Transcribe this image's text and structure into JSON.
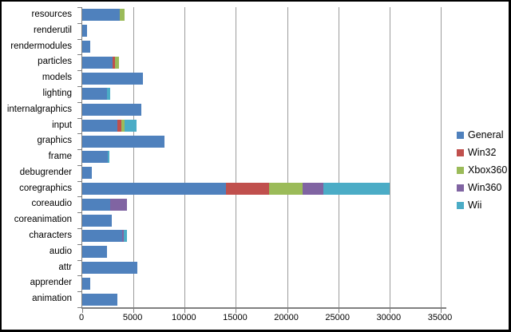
{
  "chart_data": {
    "type": "bar",
    "orientation": "horizontal",
    "stacked": true,
    "title": "",
    "categories": [
      "resources",
      "renderutil",
      "rendermodules",
      "particles",
      "models",
      "lighting",
      "internalgraphics",
      "input",
      "graphics",
      "frame",
      "debugrender",
      "coregraphics",
      "coreaudio",
      "coreanimation",
      "characters",
      "audio",
      "attr",
      "apprender",
      "animation"
    ],
    "series": [
      {
        "name": "General",
        "color": "#4F81BD",
        "values": [
          3700,
          450,
          750,
          2950,
          5900,
          2400,
          5750,
          3400,
          8000,
          2500,
          900,
          14000,
          2750,
          2900,
          3900,
          2450,
          5400,
          750,
          3450
        ]
      },
      {
        "name": "Win32",
        "color": "#C0504D",
        "values": [
          0,
          0,
          0,
          250,
          0,
          0,
          0,
          450,
          0,
          0,
          0,
          4250,
          0,
          0,
          0,
          0,
          0,
          0,
          0
        ]
      },
      {
        "name": "Xbox360",
        "color": "#9BBB59",
        "values": [
          420,
          0,
          0,
          400,
          0,
          0,
          0,
          320,
          0,
          0,
          0,
          3300,
          0,
          0,
          0,
          0,
          0,
          0,
          0
        ]
      },
      {
        "name": "Win360",
        "color": "#8064A2",
        "values": [
          0,
          0,
          0,
          0,
          0,
          0,
          0,
          0,
          0,
          0,
          0,
          2000,
          1600,
          0,
          130,
          0,
          0,
          0,
          0
        ]
      },
      {
        "name": "Wii",
        "color": "#4BACC6",
        "values": [
          0,
          0,
          0,
          0,
          0,
          320,
          0,
          1150,
          0,
          150,
          0,
          6450,
          0,
          0,
          320,
          0,
          0,
          0,
          0
        ]
      }
    ],
    "x_axis": {
      "min": 0,
      "max": 35000,
      "tick_interval": 5000,
      "tick_labels": [
        "0",
        "5000",
        "10000",
        "15000",
        "20000",
        "25000",
        "30000",
        "35000"
      ]
    },
    "grid": true,
    "legend_position": "right"
  },
  "colors": {
    "axis": "#808080",
    "gridline": "#9C9C9C",
    "text": "#000000",
    "background": "#FFFFFF",
    "frame": "#000000"
  }
}
